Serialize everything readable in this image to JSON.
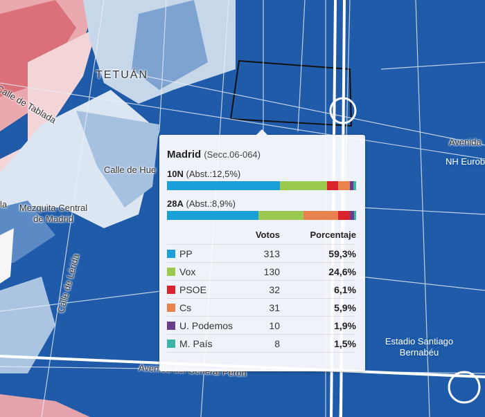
{
  "map": {
    "labels": {
      "calle_tablada": "Calle de Tablada",
      "tetuan": "TETUÁN",
      "calle_hue": "Calle de Hue",
      "mezquita": "Mezquita Central de Madrid",
      "calle_lerida": "Calle de Lérida",
      "av_peron": "Avenida del General Perón",
      "estadio": "Estadio Santiago Bernabéu",
      "avenida": "Avenida",
      "nh": "NH Eurobuild",
      "left_cut": "la"
    },
    "colors": {
      "dark_blue": "#1f5ba8",
      "mid_blue": "#5b8ac4",
      "light_blue": "#c7d7ea",
      "pink": "#f2c9cc",
      "red": "#d9707a"
    }
  },
  "tooltip": {
    "municipality": "Madrid",
    "section": "(Secc.06-064)",
    "elections": [
      {
        "name": "10N",
        "abst": "(Abst.:12,5%)",
        "shares": [
          59.3,
          24.6,
          6.1,
          5.9,
          1.9,
          1.5
        ]
      },
      {
        "name": "28A",
        "abst": "(Abst.:8,9%)",
        "shares": [
          48.5,
          23.8,
          18.3,
          6.2,
          2.2,
          1.0
        ]
      }
    ],
    "headers": {
      "votes": "Votos",
      "pct": "Porcentaje"
    },
    "parties": [
      {
        "name": "PP",
        "votes": "313",
        "pct": "59,3%",
        "color": "#1a9fd9"
      },
      {
        "name": "Vox",
        "votes": "130",
        "pct": "24,6%",
        "color": "#9bc94f"
      },
      {
        "name": "PSOE",
        "votes": "32",
        "pct": "6,1%",
        "color": "#d9232d"
      },
      {
        "name": "Cs",
        "votes": "31",
        "pct": "5,9%",
        "color": "#e8834e"
      },
      {
        "name": "U. Podemos",
        "votes": "10",
        "pct": "1,9%",
        "color": "#6b3c8c"
      },
      {
        "name": "M. País",
        "votes": "8",
        "pct": "1,5%",
        "color": "#3cb3a6"
      }
    ],
    "bar_order_28A": [
      "PP",
      "Vox",
      "Cs",
      "PSOE",
      "U. Podemos",
      "M. País"
    ]
  }
}
